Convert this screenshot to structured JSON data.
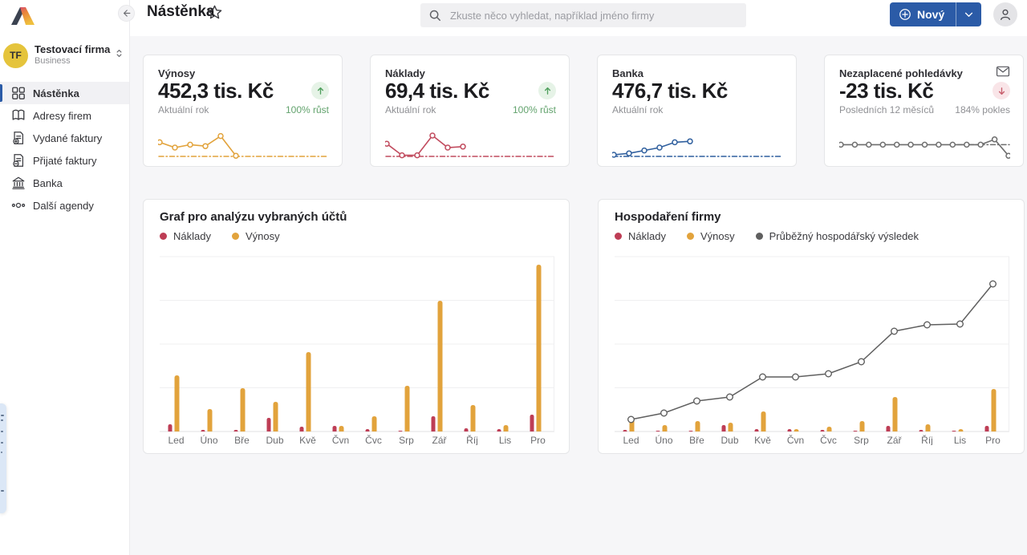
{
  "topbar": {
    "title": "Nástěnka",
    "search": {
      "placeholder": "Zkuste něco vyhledat, například jméno firmy",
      "value": ""
    },
    "new_button": {
      "label": "Nový",
      "icon": "plus-circle-icon",
      "dropdown_icon": "chevron-down-icon"
    },
    "collapse_icon": "collapse-sidebar-icon",
    "favorite_icon": "star-outline-icon",
    "user_icon": "user-avatar-icon"
  },
  "sidebar": {
    "company": {
      "initials": "TF",
      "name": "Testovací firma",
      "plan": "Business",
      "chevron_icon": "up-down-chevron-icon"
    },
    "items": [
      {
        "label": "Nástěnka",
        "icon": "dashboard-icon",
        "active": true
      },
      {
        "label": "Adresy firem",
        "icon": "address-book-icon",
        "active": false
      },
      {
        "label": "Vydané faktury",
        "icon": "invoice-out-icon",
        "active": false
      },
      {
        "label": "Přijaté faktury",
        "icon": "invoice-in-icon",
        "active": false
      },
      {
        "label": "Banka",
        "icon": "bank-icon",
        "active": false
      },
      {
        "label": "Další agendy",
        "icon": "more-dots-icon",
        "active": false
      }
    ]
  },
  "colors": {
    "accent_blue": "#2b5ba7",
    "naklady_red": "#be3d55",
    "vynosy_orange": "#e2a33c",
    "banka_blue": "#2f5f9e",
    "result_gray": "#5f5f5f",
    "growth_green": "#4f9f5d",
    "decline_red": "#c75e6c",
    "company_avatar_yellow": "#e5c43c"
  },
  "kpi_cards": [
    {
      "title": "Výnosy",
      "value": "452,3 tis. Kč",
      "period": "Aktuální rok",
      "trend": "100% růst",
      "trend_dir": "up",
      "color": "#e2a33c",
      "spark": [
        62,
        40,
        52,
        46,
        88,
        6
      ],
      "spark_full_width": false,
      "corner_icon": null
    },
    {
      "title": "Náklady",
      "value": "69,4 tis. Kč",
      "period": "Aktuální rok",
      "trend": "100% růst",
      "trend_dir": "up",
      "color": "#c14b5e",
      "spark": [
        56,
        8,
        8,
        90,
        40,
        44
      ],
      "spark_full_width": false,
      "corner_icon": null
    },
    {
      "title": "Banka",
      "value": "476,7 tis. Kč",
      "period": "Aktuální rok",
      "trend": "",
      "trend_dir": "none",
      "color": "#2f5f9e",
      "spark": [
        10,
        16,
        28,
        40,
        62,
        66
      ],
      "spark_full_width": false,
      "corner_icon": null
    },
    {
      "title": "Nezaplacené pohledávky",
      "value": "-23 tis. Kč",
      "period": "Posledních 12 měsíců",
      "trend": "184% pokles",
      "trend_dir": "down",
      "color": "#6e6e6e",
      "spark": [
        52,
        52,
        52,
        52,
        52,
        52,
        52,
        52,
        52,
        52,
        52,
        74,
        6
      ],
      "spark_full_width": true,
      "corner_icon": "envelope-icon"
    }
  ],
  "chart_data": [
    {
      "type": "bar",
      "title": "Graf pro analýzu vybraných účtů",
      "categories": [
        "Led",
        "Úno",
        "Bře",
        "Dub",
        "Kvě",
        "Čvn",
        "Čvc",
        "Srp",
        "Zář",
        "Říj",
        "Lis",
        "Pro"
      ],
      "series": [
        {
          "name": "Náklady",
          "type": "bar",
          "color": "#be3d55",
          "values": [
            9,
            2,
            2,
            17,
            6,
            7,
            3,
            1,
            19,
            4,
            3,
            21
          ]
        },
        {
          "name": "Výnosy",
          "type": "bar",
          "color": "#e2a33c",
          "values": [
            70,
            28,
            54,
            37,
            99,
            7,
            19,
            57,
            163,
            33,
            8,
            208
          ]
        }
      ],
      "xlabel": "",
      "ylabel": "",
      "ylim": [
        0,
        218
      ],
      "grid": true,
      "legend_position": "top"
    },
    {
      "type": "bar",
      "title": "Hospodaření firmy",
      "categories": [
        "Led",
        "Úno",
        "Bře",
        "Dub",
        "Kvě",
        "Čvn",
        "Čvc",
        "Srp",
        "Zář",
        "Říj",
        "Lis",
        "Pro"
      ],
      "series": [
        {
          "name": "Náklady",
          "type": "bar",
          "color": "#be3d55",
          "values": [
            2,
            1,
            1,
            8,
            3,
            3,
            2,
            1,
            7,
            2,
            1,
            7
          ]
        },
        {
          "name": "Výnosy",
          "type": "bar",
          "color": "#e2a33c",
          "values": [
            17,
            8,
            13,
            11,
            25,
            3,
            6,
            13,
            43,
            9,
            3,
            53
          ]
        },
        {
          "name": "Průběžný hospodářský výsledek",
          "type": "line",
          "color": "#5f5f5f",
          "values": [
            15,
            23,
            38,
            43,
            68,
            68,
            72,
            87,
            125,
            133,
            134,
            184
          ]
        }
      ],
      "xlabel": "",
      "ylabel": "",
      "ylim": [
        0,
        218
      ],
      "grid": true,
      "legend_position": "top"
    }
  ]
}
